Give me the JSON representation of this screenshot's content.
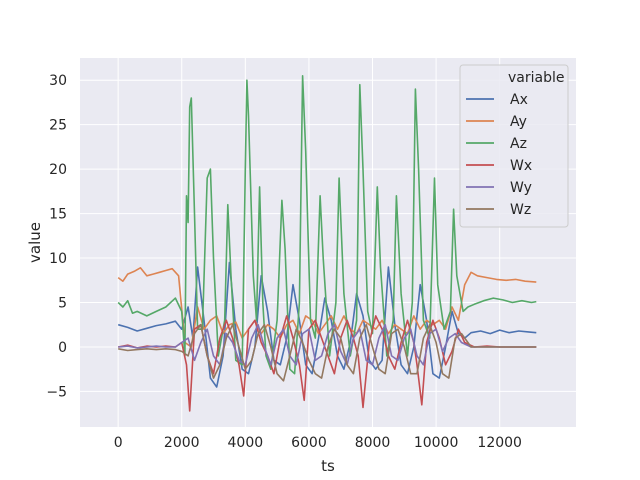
{
  "chart_data": {
    "type": "line",
    "title": "",
    "xlabel": "ts",
    "ylabel": "value",
    "xlim": [
      -1200,
      14400
    ],
    "ylim": [
      -9,
      32.5
    ],
    "xticks": [
      0,
      2000,
      4000,
      6000,
      8000,
      10000,
      12000
    ],
    "xtick_labels": [
      "0",
      "2000",
      "4000",
      "6000",
      "8000",
      "10000",
      "12000"
    ],
    "yticks": [
      -5,
      0,
      5,
      10,
      15,
      20,
      25,
      30
    ],
    "ytick_labels": [
      "−5",
      "0",
      "5",
      "10",
      "15",
      "20",
      "25",
      "30"
    ],
    "grid": true,
    "background": "#eaeaf2",
    "legend": {
      "title": "variable",
      "placement": "top-right"
    },
    "series": [
      {
        "name": "Ax",
        "color": "#4c72b0",
        "x": [
          0,
          300,
          600,
          900,
          1200,
          1500,
          1800,
          2000,
          2200,
          2350,
          2500,
          2700,
          2900,
          3100,
          3300,
          3500,
          3700,
          3900,
          4100,
          4300,
          4500,
          4700,
          4900,
          5100,
          5300,
          5500,
          5700,
          5900,
          6100,
          6300,
          6500,
          6700,
          6900,
          7100,
          7300,
          7500,
          7700,
          7900,
          8100,
          8300,
          8500,
          8700,
          8900,
          9100,
          9300,
          9500,
          9700,
          9900,
          10100,
          10300,
          10500,
          10700,
          10900,
          11100,
          11400,
          11700,
          12000,
          12300,
          12600,
          12900,
          13150
        ],
        "y": [
          2.5,
          2.2,
          1.8,
          2.1,
          2.4,
          2.6,
          2.9,
          2.0,
          4.5,
          1.0,
          9.0,
          3.0,
          -3.5,
          -4.5,
          -1.0,
          9.5,
          2.0,
          -2.5,
          -3.0,
          0.0,
          8.0,
          4.0,
          -1.5,
          -2.0,
          1.0,
          7.0,
          3.0,
          -2.0,
          -3.0,
          1.0,
          5.5,
          3.0,
          -1.0,
          -2.5,
          0.5,
          6.0,
          3.5,
          -1.5,
          -2.5,
          -1.5,
          9.0,
          2.5,
          -2.0,
          -3.0,
          0.0,
          7.0,
          3.0,
          -3.0,
          -3.5,
          0.0,
          4.0,
          1.5,
          1.0,
          1.6,
          1.8,
          1.5,
          1.9,
          1.6,
          1.8,
          1.7,
          1.6
        ]
      },
      {
        "name": "Ay",
        "color": "#dd8452",
        "x": [
          0,
          150,
          300,
          500,
          700,
          900,
          1100,
          1300,
          1500,
          1700,
          1900,
          2100,
          2300,
          2500,
          2700,
          2900,
          3100,
          3300,
          3500,
          3700,
          3900,
          4100,
          4300,
          4500,
          4700,
          4900,
          5100,
          5300,
          5500,
          5700,
          5900,
          6100,
          6300,
          6500,
          6700,
          6900,
          7100,
          7300,
          7500,
          7700,
          7900,
          8100,
          8300,
          8500,
          8700,
          8900,
          9100,
          9300,
          9500,
          9700,
          9900,
          10100,
          10300,
          10500,
          10700,
          10900,
          11100,
          11300,
          11600,
          11900,
          12200,
          12500,
          12800,
          13150
        ],
        "y": [
          7.8,
          7.4,
          8.2,
          8.5,
          8.9,
          8.0,
          8.2,
          8.4,
          8.6,
          8.8,
          8.0,
          0.5,
          0.0,
          4.5,
          2.0,
          3.0,
          3.5,
          1.5,
          2.5,
          2.8,
          1.0,
          2.0,
          3.0,
          1.5,
          2.5,
          2.0,
          1.0,
          2.5,
          3.0,
          1.5,
          3.5,
          3.0,
          1.5,
          2.5,
          3.5,
          2.0,
          3.5,
          2.0,
          1.5,
          3.0,
          2.5,
          2.0,
          3.0,
          1.5,
          2.5,
          2.0,
          1.5,
          3.5,
          2.0,
          3.0,
          2.5,
          3.0,
          2.0,
          4.5,
          3.0,
          7.0,
          8.4,
          8.0,
          7.8,
          7.6,
          7.5,
          7.6,
          7.4,
          7.3
        ]
      },
      {
        "name": "Az",
        "color": "#55a868",
        "x": [
          0,
          150,
          300,
          450,
          600,
          900,
          1200,
          1500,
          1800,
          2000,
          2100,
          2150,
          2200,
          2250,
          2300,
          2400,
          2500,
          2650,
          2800,
          2900,
          3000,
          3150,
          3350,
          3450,
          3550,
          3700,
          3900,
          4000,
          4050,
          4100,
          4250,
          4350,
          4450,
          4550,
          4650,
          4800,
          5000,
          5150,
          5250,
          5400,
          5550,
          5700,
          5800,
          5900,
          6050,
          6200,
          6350,
          6450,
          6650,
          6850,
          6950,
          7100,
          7300,
          7500,
          7600,
          7700,
          7850,
          8000,
          8150,
          8250,
          8450,
          8650,
          8750,
          8900,
          9100,
          9250,
          9350,
          9450,
          9600,
          9800,
          9950,
          10050,
          10250,
          10450,
          10550,
          10650,
          10850,
          11000,
          11200,
          11500,
          11800,
          12100,
          12400,
          12700,
          13000,
          13150
        ],
        "y": [
          5.0,
          4.5,
          5.2,
          3.8,
          4.0,
          3.5,
          4.0,
          4.5,
          5.5,
          4.0,
          -1.0,
          17.0,
          14.0,
          27.0,
          28.0,
          15.0,
          2.0,
          2.0,
          19.0,
          20.0,
          10.0,
          -1.0,
          3.0,
          16.0,
          8.0,
          -1.5,
          -2.0,
          20.0,
          30.0,
          26.0,
          8.0,
          3.0,
          18.0,
          5.0,
          -1.0,
          -2.5,
          3.0,
          16.5,
          11.0,
          -2.5,
          -3.0,
          5.0,
          30.5,
          22.0,
          3.0,
          1.0,
          17.0,
          10.0,
          -1.0,
          5.0,
          19.0,
          6.0,
          -1.0,
          3.0,
          29.5,
          20.0,
          4.0,
          1.5,
          18.0,
          9.0,
          -1.0,
          3.0,
          17.0,
          6.0,
          -1.0,
          5.0,
          29.0,
          20.0,
          3.0,
          1.0,
          19.0,
          7.0,
          2.0,
          4.0,
          15.5,
          8.0,
          4.0,
          4.5,
          4.8,
          5.2,
          5.5,
          5.3,
          5.0,
          5.2,
          5.0,
          5.1
        ]
      },
      {
        "name": "Wx",
        "color": "#c44e52",
        "x": [
          0,
          300,
          600,
          900,
          1200,
          1500,
          1800,
          2000,
          2150,
          2250,
          2400,
          2600,
          2800,
          3000,
          3200,
          3400,
          3600,
          3800,
          3950,
          4100,
          4300,
          4500,
          4700,
          4900,
          5100,
          5300,
          5500,
          5700,
          5850,
          6000,
          6200,
          6400,
          6600,
          6800,
          7000,
          7200,
          7400,
          7550,
          7700,
          7900,
          8100,
          8300,
          8500,
          8700,
          8900,
          9100,
          9300,
          9400,
          9550,
          9700,
          9900,
          10100,
          10300,
          10500,
          10700,
          10900,
          11200,
          11600,
          12000,
          12400,
          12800,
          13150
        ],
        "y": [
          0.0,
          0.2,
          -0.1,
          0.1,
          0.0,
          0.1,
          0.0,
          0.5,
          -2.0,
          -7.2,
          2.0,
          2.5,
          -1.0,
          -3.0,
          1.0,
          3.0,
          1.0,
          -2.0,
          -5.5,
          2.0,
          3.0,
          0.5,
          -1.0,
          -3.0,
          1.0,
          3.5,
          1.0,
          -2.0,
          -6.0,
          2.0,
          3.0,
          1.0,
          -1.0,
          -3.0,
          1.0,
          3.0,
          1.0,
          -1.0,
          -6.8,
          0.5,
          3.5,
          2.0,
          -1.0,
          -2.5,
          0.5,
          3.0,
          0.5,
          -2.0,
          -6.5,
          0.5,
          3.0,
          1.0,
          -2.0,
          -0.5,
          2.0,
          0.5,
          0.0,
          0.1,
          0.0,
          0.0,
          0.0,
          0.0
        ]
      },
      {
        "name": "Wy",
        "color": "#8172b3",
        "x": [
          0,
          300,
          600,
          900,
          1200,
          1500,
          1800,
          2000,
          2200,
          2400,
          2600,
          2800,
          3000,
          3200,
          3400,
          3600,
          3800,
          4000,
          4200,
          4400,
          4600,
          4800,
          5000,
          5200,
          5400,
          5600,
          5800,
          6000,
          6200,
          6400,
          6600,
          6800,
          7000,
          7200,
          7400,
          7600,
          7800,
          8000,
          8200,
          8400,
          8600,
          8800,
          9000,
          9200,
          9400,
          9600,
          9800,
          10000,
          10200,
          10400,
          10600,
          10800,
          11100,
          11500,
          12000,
          12500,
          13150
        ],
        "y": [
          0.0,
          0.1,
          -0.1,
          0.0,
          0.1,
          0.0,
          0.0,
          0.5,
          1.0,
          -1.5,
          0.5,
          2.0,
          -1.0,
          -2.0,
          1.5,
          0.5,
          -1.5,
          -2.0,
          1.0,
          2.5,
          0.0,
          -2.0,
          1.0,
          2.0,
          -1.0,
          -2.0,
          1.5,
          2.0,
          -1.5,
          -1.0,
          1.5,
          2.5,
          -0.5,
          -2.0,
          1.0,
          2.0,
          -1.5,
          -2.0,
          1.0,
          2.5,
          -1.0,
          -1.5,
          1.0,
          2.0,
          -1.0,
          -2.0,
          1.5,
          2.0,
          -0.5,
          1.0,
          1.5,
          0.5,
          0.0,
          0.0,
          0.0,
          0.0,
          0.0
        ]
      },
      {
        "name": "Wz",
        "color": "#937860",
        "x": [
          0,
          300,
          600,
          900,
          1200,
          1500,
          1800,
          2000,
          2200,
          2400,
          2600,
          2800,
          3000,
          3200,
          3400,
          3600,
          3800,
          4000,
          4200,
          4400,
          4600,
          4800,
          5000,
          5200,
          5400,
          5600,
          5800,
          6000,
          6200,
          6400,
          6600,
          6800,
          7000,
          7200,
          7400,
          7600,
          7800,
          8000,
          8200,
          8400,
          8600,
          8800,
          9000,
          9200,
          9400,
          9600,
          9800,
          10000,
          10200,
          10400,
          10600,
          10800,
          11100,
          11500,
          12000,
          12500,
          13150
        ],
        "y": [
          -0.2,
          -0.4,
          -0.3,
          -0.2,
          -0.3,
          -0.2,
          -0.3,
          -0.5,
          -1.0,
          1.5,
          2.5,
          -1.0,
          -3.5,
          -2.0,
          1.0,
          2.5,
          0.0,
          -2.5,
          -1.5,
          1.5,
          2.5,
          0.0,
          -3.0,
          -3.8,
          -1.0,
          2.0,
          0.5,
          -1.5,
          -3.0,
          -3.5,
          0.0,
          2.0,
          1.0,
          -2.0,
          -3.0,
          1.0,
          2.5,
          0.0,
          -2.5,
          -3.0,
          1.5,
          2.0,
          0.0,
          -3.0,
          -3.0,
          1.0,
          2.5,
          0.5,
          -3.0,
          -3.5,
          1.0,
          1.5,
          0.0,
          0.0,
          0.0,
          0.0,
          0.0
        ]
      }
    ]
  }
}
